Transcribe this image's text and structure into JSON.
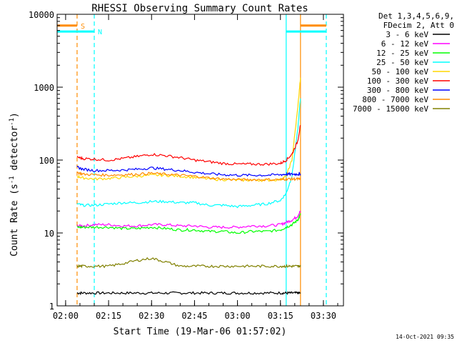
{
  "chart_data": {
    "type": "line",
    "title": "RHESSI Observing Summary Count Rates",
    "xlabel": "Start Time (19-Mar-06 01:57:02)",
    "ylabel": "Count Rate (s^-1 detector^-1)",
    "yscale": "log",
    "ylim": [
      1,
      10000
    ],
    "xlim": [
      "01:57:02",
      "03:37:00"
    ],
    "x_ticks": [
      "02:00",
      "02:15",
      "02:30",
      "02:45",
      "03:00",
      "03:15",
      "03:30"
    ],
    "y_ticks": [
      "1",
      "10",
      "100",
      "1000",
      "10000"
    ],
    "legend_header": [
      "Det 1,3,4,5,6,9,",
      "FDecim 2, Att 0"
    ],
    "legend_position": "right, outside plot",
    "timestamp": "14-Oct-2021 09:35",
    "flag_labels": {
      "saa": "S",
      "night": "N"
    },
    "x": [
      "02:04",
      "02:06",
      "02:10",
      "02:15",
      "02:20",
      "02:25",
      "02:30",
      "02:35",
      "02:40",
      "02:45",
      "02:50",
      "02:55",
      "03:00",
      "03:05",
      "03:10",
      "03:15",
      "03:17",
      "03:19",
      "03:21",
      "03:22"
    ],
    "series": [
      {
        "name": "3 - 6 keV",
        "color": "#000000",
        "values": [
          1.5,
          1.5,
          1.5,
          1.5,
          1.5,
          1.5,
          1.5,
          1.5,
          1.5,
          1.5,
          1.5,
          1.5,
          1.5,
          1.5,
          1.5,
          1.5,
          1.5,
          1.5,
          1.5,
          1.5
        ]
      },
      {
        "name": "6 - 12 keV",
        "color": "#ff00ff",
        "values": [
          12.5,
          12.5,
          13,
          13,
          12.5,
          12.5,
          13,
          13,
          12.5,
          12.5,
          12,
          12,
          12,
          12.5,
          12.5,
          13,
          14,
          15,
          17,
          20
        ]
      },
      {
        "name": "12 - 25 keV",
        "color": "#00ff00",
        "values": [
          12,
          12,
          12,
          12,
          11.5,
          11.5,
          12,
          11.5,
          11,
          11,
          10.5,
          10.5,
          10,
          10.5,
          10.5,
          11,
          12,
          13,
          15,
          18
        ]
      },
      {
        "name": "25 - 50 keV",
        "color": "#00ffff",
        "values": [
          25,
          24,
          24,
          25,
          26,
          26,
          27,
          27,
          26,
          26,
          24,
          24,
          23,
          24,
          25,
          28,
          35,
          60,
          250,
          700
        ]
      },
      {
        "name": "50 - 100 keV",
        "color": "#ffd700",
        "values": [
          60,
          57,
          55,
          56,
          58,
          60,
          62,
          62,
          60,
          58,
          55,
          54,
          53,
          53,
          53,
          54,
          60,
          100,
          500,
          1350
        ]
      },
      {
        "name": "100 - 300 keV",
        "color": "#ff0000",
        "values": [
          110,
          105,
          103,
          100,
          105,
          112,
          120,
          115,
          108,
          100,
          95,
          90,
          88,
          88,
          88,
          90,
          100,
          120,
          180,
          300
        ]
      },
      {
        "name": "300 - 800 keV",
        "color": "#0000ff",
        "values": [
          80,
          75,
          72,
          72,
          73,
          75,
          78,
          75,
          72,
          68,
          65,
          63,
          62,
          62,
          62,
          63,
          64,
          64,
          64,
          64
        ]
      },
      {
        "name": "800 - 7000 keV",
        "color": "#ff8c00",
        "values": [
          68,
          64,
          63,
          62,
          63,
          64,
          66,
          64,
          62,
          60,
          57,
          55,
          54,
          54,
          54,
          54,
          55,
          55,
          55,
          55
        ]
      },
      {
        "name": "7000 - 15000 keV",
        "color": "#808000",
        "values": [
          3.5,
          3.5,
          3.5,
          3.5,
          3.8,
          4.2,
          4.5,
          4,
          3.5,
          3.5,
          3.5,
          3.5,
          3.5,
          3.5,
          3.5,
          3.5,
          3.5,
          3.5,
          3.5,
          3.5
        ]
      }
    ],
    "vertical_markers": [
      {
        "time": "02:04",
        "color": "#ff8c00",
        "style": "dashed"
      },
      {
        "time": "02:10",
        "color": "#00ffff",
        "style": "dashed"
      },
      {
        "time": "03:17",
        "color": "#00ffff",
        "style": "solid"
      },
      {
        "time": "03:22",
        "color": "#ff8c00",
        "style": "solid"
      },
      {
        "time": "03:31",
        "color": "#00ffff",
        "style": "dashed"
      }
    ],
    "flag_bars": [
      {
        "label": "S",
        "color": "#ff8c00",
        "level": 7000,
        "start": "01:57:02",
        "end": "02:04",
        "end2_start": "03:22",
        "end2_end": "03:31"
      },
      {
        "label": "N",
        "color": "#00ffff",
        "level": 5800,
        "start": "01:57:02",
        "end": "02:10",
        "end2_start": "03:17",
        "end2_end": "03:31"
      }
    ]
  }
}
